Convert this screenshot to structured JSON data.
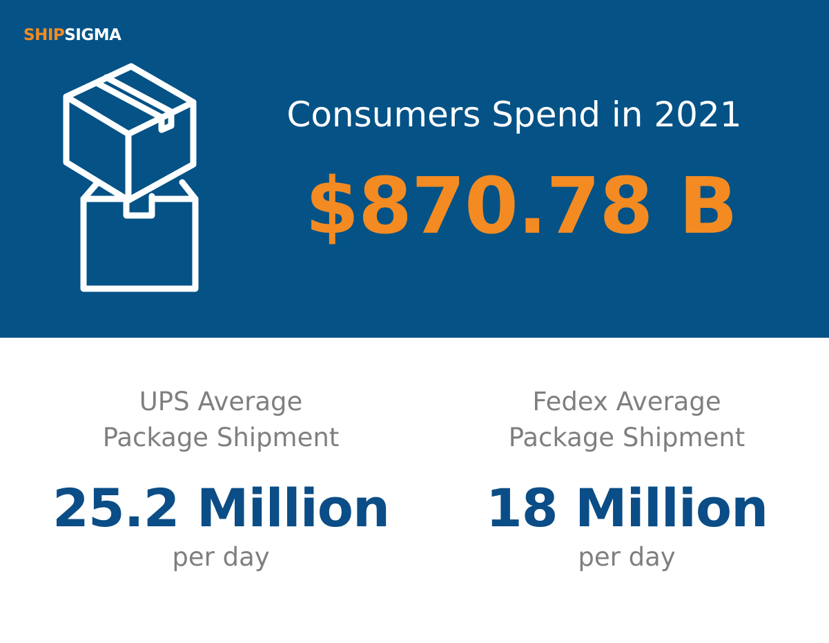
{
  "brand": {
    "logo_part1": "SHIP",
    "logo_part2": "SIGMA",
    "accent_color": "#f38b22",
    "banner_color": "#045286",
    "value_color": "#0b4d86"
  },
  "banner": {
    "icon": "package-boxes-icon",
    "headline": "Consumers Spend in 2021",
    "amount": "$870.78 B"
  },
  "stats": [
    {
      "label_line1": "UPS Average",
      "label_line2": "Package Shipment",
      "value": "25.2 Million",
      "unit": "per day"
    },
    {
      "label_line1": "Fedex Average",
      "label_line2": "Package Shipment",
      "value": "18 Million",
      "unit": "per day"
    }
  ]
}
